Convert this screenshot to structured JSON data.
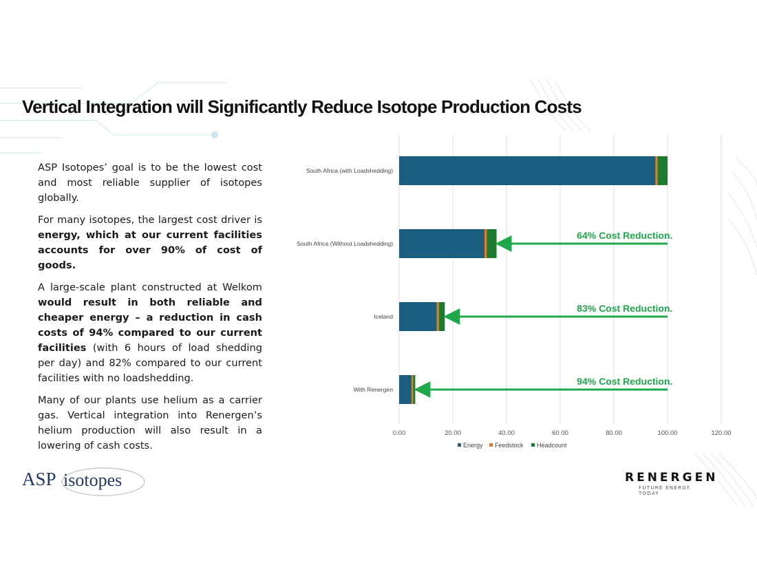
{
  "slide": {
    "title": "Vertical Integration will Significantly Reduce Isotope Production Costs"
  },
  "body": {
    "p1": "ASP Isotopes’ goal is to be the lowest cost and most reliable supplier of isotopes globally.",
    "p2_a": "For many isotopes, the largest cost driver is ",
    "p2_b": "energy, which at our current facilities accounts for over 90% of cost of goods.",
    "p3_a": "A large-scale plant constructed at Welkom ",
    "p3_b": "would result in both reliable and cheaper energy – a reduction in cash costs of 94% compared to our current facilities",
    "p3_c": " (with 6 hours of load shedding per day) and 82% compared to our current facilities with no loadshedding.",
    "p4": "Many of our plants use helium as a carrier gas. Vertical integration into Renergen’s helium production will also result in a lowering of cash costs."
  },
  "chart_data": {
    "type": "bar",
    "orientation": "horizontal",
    "stacked": true,
    "categories": [
      "South Africa (with Loadshedding)",
      "South Africa (Without Loadshedding)",
      "Iceland",
      "With Renergen"
    ],
    "series": [
      {
        "name": "Energy",
        "color": "#1b5e7f",
        "values": [
          95.5,
          31.8,
          14.0,
          4.6
        ]
      },
      {
        "name": "Feedstock",
        "color": "#e07b2a",
        "values": [
          0.8,
          0.8,
          0.8,
          0.6
        ]
      },
      {
        "name": "Headcount",
        "color": "#1e7a2e",
        "values": [
          3.7,
          3.7,
          2.2,
          0.8
        ]
      }
    ],
    "xlim": [
      0,
      120
    ],
    "xticks": [
      0,
      20,
      40,
      60,
      80,
      100,
      120
    ],
    "tick_labels": [
      "0.00",
      "20.00",
      "40.00",
      "60.00",
      "80.00",
      "100.00",
      "120.00"
    ],
    "grid": "vertical",
    "legend": "bottom",
    "annotations": [
      {
        "category": "South Africa (Without Loadshedding)",
        "text": "64% Cost Reduction."
      },
      {
        "category": "Iceland",
        "text": "83% Cost Reduction."
      },
      {
        "category": "With Renergen",
        "text": "94% Cost Reduction."
      }
    ],
    "annotation_color": "#1fa84a"
  },
  "logos": {
    "asp_a": "ASP",
    "asp_b": "isotopes",
    "renergen_word": "RENERGEN",
    "renergen_tag": "FUTURE ENERGY. TODAY"
  }
}
